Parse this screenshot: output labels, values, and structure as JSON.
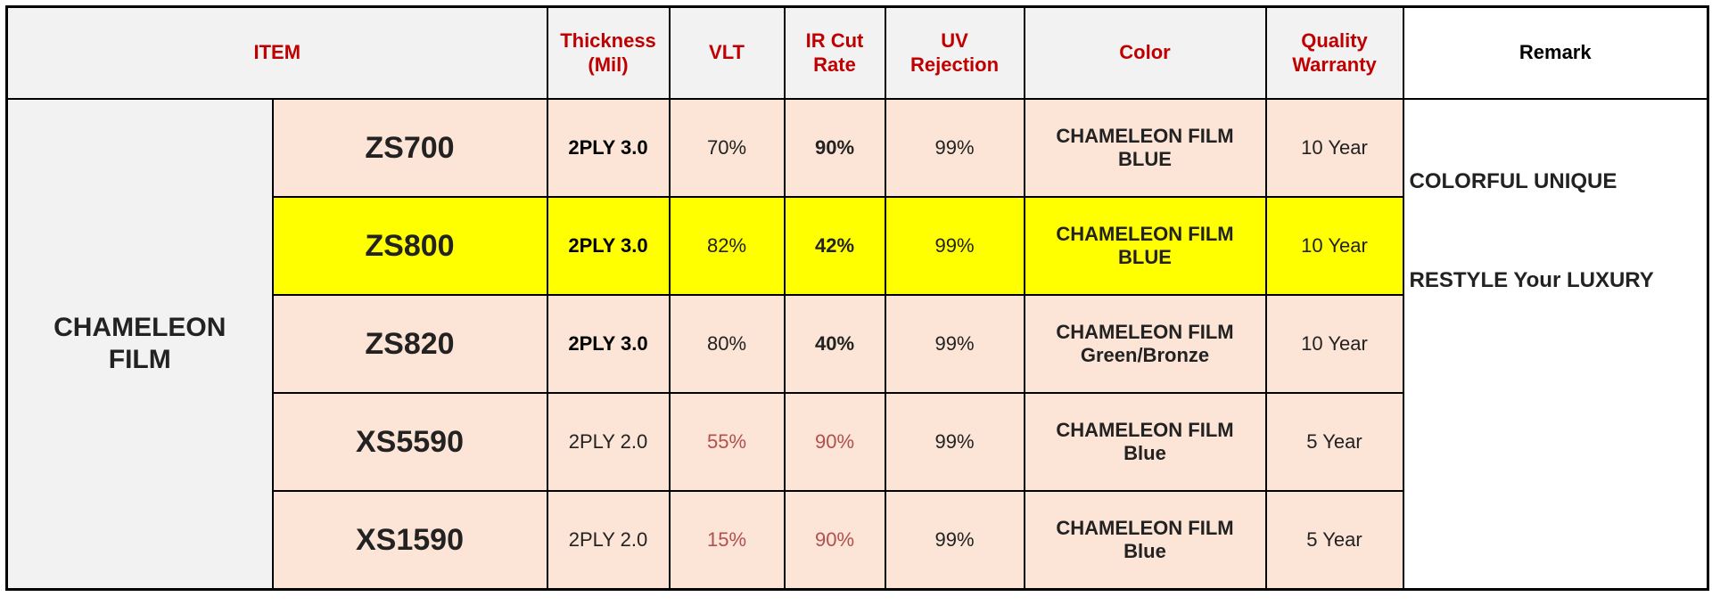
{
  "header": {
    "item": "ITEM",
    "thickness": "Thickness\n(Mil)",
    "vlt": "VLT",
    "ir_cut_rate": "IR Cut\nRate",
    "uv_rejection": "UV\nRejection",
    "color": "Color",
    "quality_warranty": "Quality\nWarranty",
    "remark": "Remark"
  },
  "table": {
    "group": "CHAMELEON\nFILM",
    "rows": [
      {
        "model": "ZS700",
        "thickness": "2PLY 3.0",
        "vlt": "70%",
        "ir_cut": "90%",
        "uv": "99%",
        "color": "CHAMELEON FILM\nBLUE",
        "warranty": "10 Year"
      },
      {
        "model": "ZS800",
        "thickness": "2PLY 3.0",
        "vlt": "82%",
        "ir_cut": "42%",
        "uv": "99%",
        "color": "CHAMELEON FILM\nBLUE",
        "warranty": "10 Year"
      },
      {
        "model": "ZS820",
        "thickness": "2PLY 3.0",
        "vlt": "80%",
        "ir_cut": "40%",
        "uv": "99%",
        "color": "CHAMELEON FILM\nGreen/Bronze",
        "warranty": "10 Year"
      },
      {
        "model": "XS5590",
        "thickness": "2PLY 2.0",
        "vlt": "55%",
        "ir_cut": "90%",
        "uv": "99%",
        "color": "CHAMELEON FILM\nBlue",
        "warranty": "5 Year"
      },
      {
        "model": "XS1590",
        "thickness": "2PLY 2.0",
        "vlt": "15%",
        "ir_cut": "90%",
        "uv": "99%",
        "color": "CHAMELEON FILM\nBlue",
        "warranty": "5 Year"
      }
    ]
  },
  "remark": {
    "lines": [
      "COLORFUL UNIQUE",
      "RESTYLE Your LUXURY"
    ]
  }
}
